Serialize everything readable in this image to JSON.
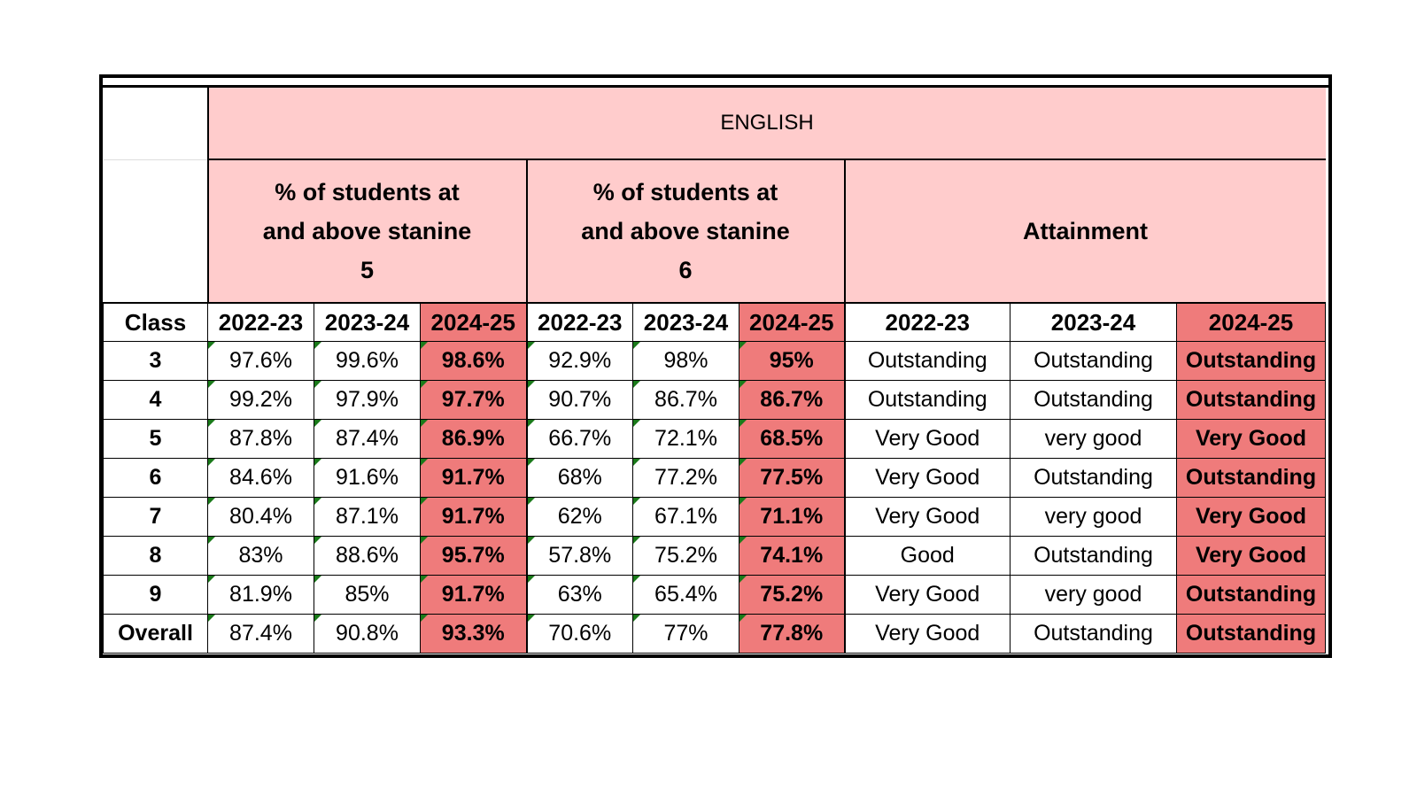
{
  "subject": "ENGLISH",
  "groups": {
    "g1": "% of students at and above stanine 5",
    "g2": "% of students at and above stanine 6",
    "g3": "Attainment"
  },
  "years": {
    "class_label": "Class",
    "y1": "2022-23",
    "y2": "2023-24",
    "y3": "2024-25"
  },
  "rows": [
    {
      "c": "3",
      "a": "97.6%",
      "b": "99.6%",
      "d": "98.6%",
      "e": "92.9%",
      "f": "98%",
      "g": "95%",
      "h": "Outstanding",
      "i": "Outstanding",
      "j": "Outstanding"
    },
    {
      "c": "4",
      "a": "99.2%",
      "b": "97.9%",
      "d": "97.7%",
      "e": "90.7%",
      "f": "86.7%",
      "g": "86.7%",
      "h": "Outstanding",
      "i": "Outstanding",
      "j": "Outstanding"
    },
    {
      "c": "5",
      "a": "87.8%",
      "b": "87.4%",
      "d": "86.9%",
      "e": "66.7%",
      "f": "72.1%",
      "g": "68.5%",
      "h": "Very Good",
      "i": "very good",
      "j": "Very Good"
    },
    {
      "c": "6",
      "a": "84.6%",
      "b": "91.6%",
      "d": "91.7%",
      "e": "68%",
      "f": "77.2%",
      "g": "77.5%",
      "h": "Very Good",
      "i": "Outstanding",
      "j": "Outstanding"
    },
    {
      "c": "7",
      "a": "80.4%",
      "b": "87.1%",
      "d": "91.7%",
      "e": "62%",
      "f": "67.1%",
      "g": "71.1%",
      "h": "Very Good",
      "i": "very good",
      "j": "Very Good"
    },
    {
      "c": "8",
      "a": "83%",
      "b": "88.6%",
      "d": "95.7%",
      "e": "57.8%",
      "f": "75.2%",
      "g": "74.1%",
      "h": "Good",
      "i": "Outstanding",
      "j": "Very Good"
    },
    {
      "c": "9",
      "a": "81.9%",
      "b": "85%",
      "d": "91.7%",
      "e": "63%",
      "f": "65.4%",
      "g": "75.2%",
      "h": "Very Good",
      "i": "very good",
      "j": "Outstanding"
    },
    {
      "c": "Overall",
      "a": "87.4%",
      "b": "90.8%",
      "d": "93.3%",
      "e": "70.6%",
      "f": "77%",
      "g": "77.8%",
      "h": "Very Good",
      "i": "Outstanding",
      "j": "Outstanding"
    }
  ],
  "colors": {
    "header_bg": "#ffcccc",
    "highlight_bg": "#ef7b7b",
    "comment_marker": "#1a7a1a"
  }
}
